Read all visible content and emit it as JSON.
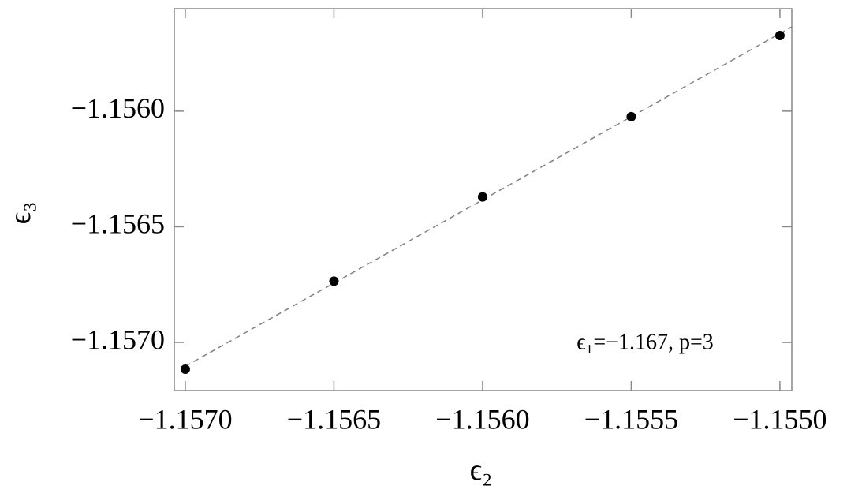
{
  "chart_data": {
    "type": "scatter",
    "x_label": "ϵ₂",
    "y_label": "ϵ₃",
    "annotation": "ϵ₁=−1.167, p=3",
    "x": [
      -1.157,
      -1.1565,
      -1.156,
      -1.1555,
      -1.155
    ],
    "series": [
      {
        "color": "#000000",
        "values": [
          -1.157116,
          -1.156735,
          -1.156371,
          -1.156024,
          -1.155673
        ]
      }
    ],
    "fit_line": {
      "color": "#808080",
      "dashed": true
    },
    "xlim": [
      -1.157037,
      -1.15496
    ],
    "ylim": [
      -1.157208,
      -1.155557
    ],
    "xticks": [
      {
        "value": -1.157,
        "label": "−1.1570"
      },
      {
        "value": -1.1565,
        "label": "−1.1565"
      },
      {
        "value": -1.156,
        "label": "−1.1560"
      },
      {
        "value": -1.1555,
        "label": "−1.1555"
      },
      {
        "value": -1.155,
        "label": "−1.1550"
      }
    ],
    "yticks": [
      {
        "value": -1.157,
        "label": "−1.1570"
      },
      {
        "value": -1.1565,
        "label": "−1.1565"
      },
      {
        "value": -1.156,
        "label": "−1.1560"
      }
    ]
  }
}
